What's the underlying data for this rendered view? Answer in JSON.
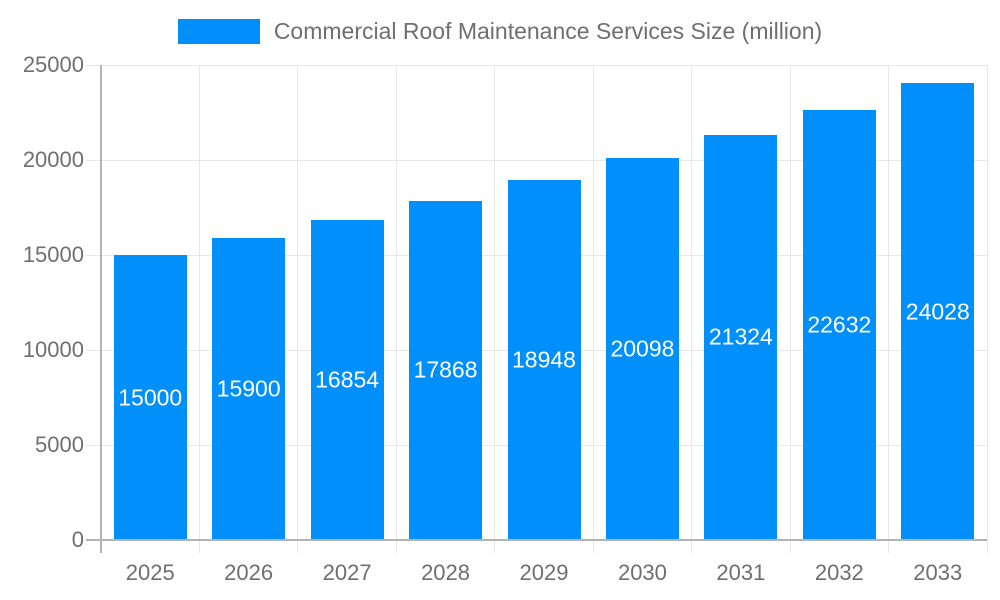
{
  "chart_data": {
    "type": "bar",
    "title": "Commercial Roof Maintenance Services Size (million)",
    "categories": [
      "2025",
      "2026",
      "2027",
      "2028",
      "2029",
      "2030",
      "2031",
      "2032",
      "2033"
    ],
    "values": [
      15000,
      15900,
      16854,
      17868,
      18948,
      20098,
      21324,
      22632,
      24028
    ],
    "xlabel": "",
    "ylabel": "",
    "ylim": [
      0,
      25000
    ],
    "yticks": [
      0,
      5000,
      10000,
      15000,
      20000,
      25000
    ],
    "grid": "on",
    "legend_position": "top",
    "colors": {
      "bar": "#008FFB",
      "grid": "#e8e8e8",
      "axis": "#b3b3b3",
      "axis_text": "#6f6f6f",
      "bar_label_text": "#ffffff"
    }
  }
}
